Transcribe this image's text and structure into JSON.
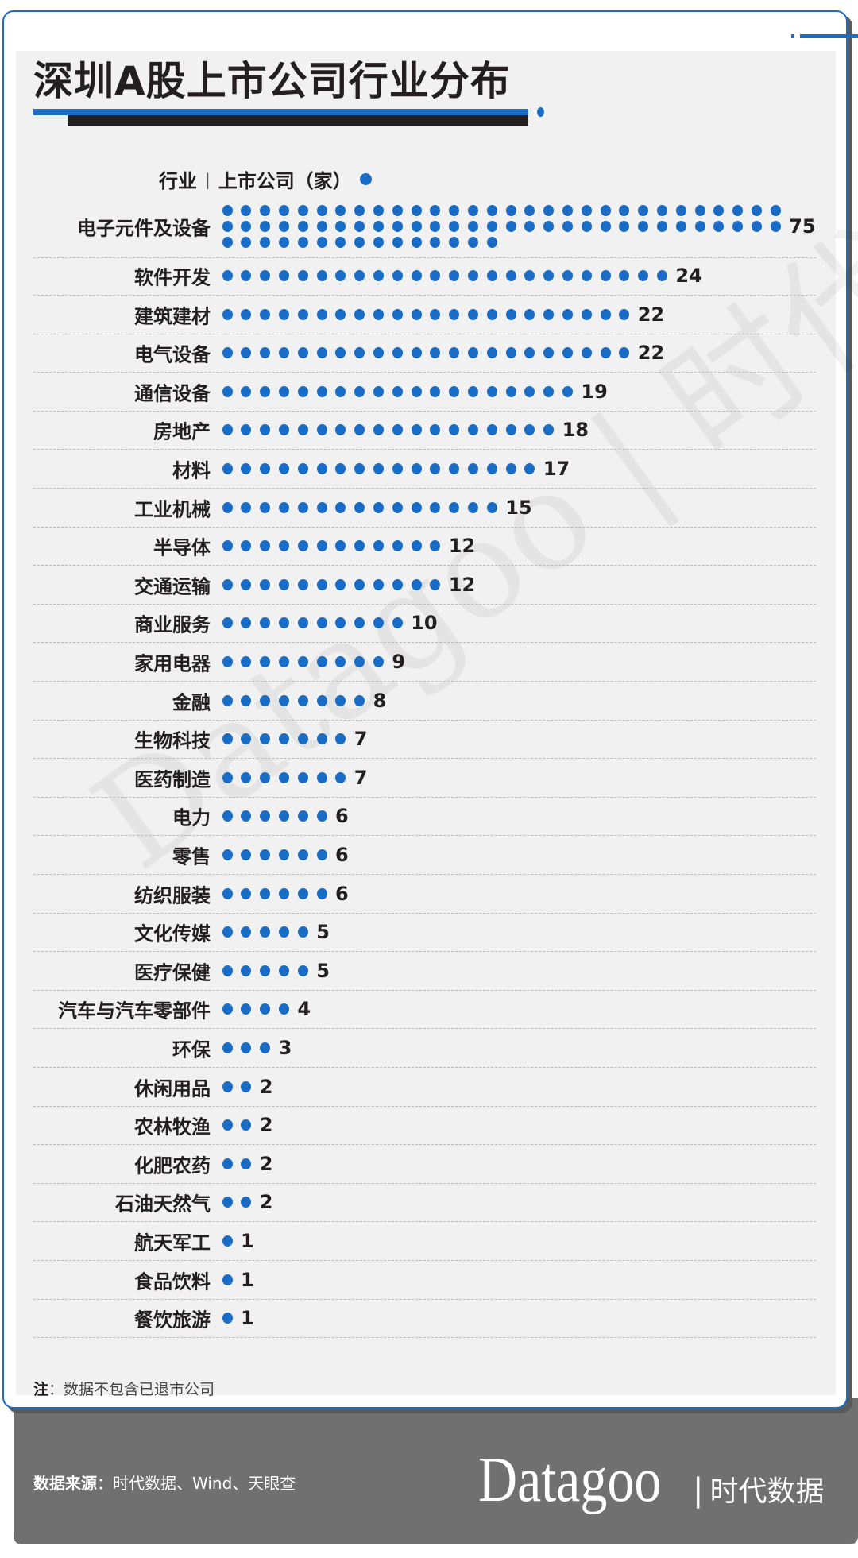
{
  "title": "深圳A股上市公司行业分布",
  "legend": {
    "category_label": "行业",
    "separator": "|",
    "value_label": "上市公司（家）",
    "dot_icon": "blue-dot-icon"
  },
  "colors": {
    "accent": "#1a6cc4",
    "text": "#231f20",
    "panel": "#f1f1f1",
    "footer": "#707070"
  },
  "chart_data": {
    "type": "dot-plot",
    "title": "深圳A股上市公司行业分布",
    "unit_label": "上市公司（家）",
    "category_header": "行业",
    "dot_value": 1,
    "categories": [
      "电子元件及设备",
      "软件开发",
      "建筑建材",
      "电气设备",
      "通信设备",
      "房地产",
      "材料",
      "工业机械",
      "半导体",
      "交通运输",
      "商业服务",
      "家用电器",
      "金融",
      "生物科技",
      "医药制造",
      "电力",
      "零售",
      "纺织服装",
      "文化传媒",
      "医疗保健",
      "汽车与汽车零部件",
      "环保",
      "休闲用品",
      "农林牧渔",
      "化肥农药",
      "石油天然气",
      "航天军工",
      "食品饮料",
      "餐饮旅游"
    ],
    "values": [
      75,
      24,
      22,
      22,
      19,
      18,
      17,
      15,
      12,
      12,
      10,
      9,
      8,
      7,
      7,
      6,
      6,
      6,
      5,
      5,
      4,
      3,
      2,
      2,
      2,
      2,
      1,
      1,
      1
    ],
    "grid": false
  },
  "note": {
    "label": "注",
    "text": "：数据不包含已退市公司"
  },
  "footer": {
    "source_label": "数据来源",
    "source_text": "：时代数据、Wind、天眼查",
    "logo_brand": "Datagoo",
    "logo_separator": "|",
    "logo_cn": "时代数据"
  },
  "watermark": "Datagoo | 时代数据"
}
